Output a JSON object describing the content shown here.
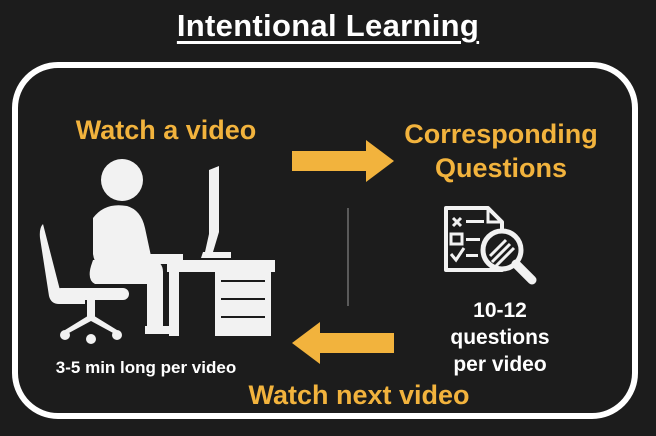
{
  "title": "Intentional Learning",
  "steps": {
    "watch": {
      "label": "Watch a video",
      "icon": "person-at-computer-icon",
      "caption": "3-5 min long per video"
    },
    "questions": {
      "label_line1": "Corresponding",
      "label_line2": "Questions",
      "icon": "checklist-magnifier-icon",
      "caption_line1": "10-12",
      "caption_line2": "questions",
      "caption_line3": "per video"
    },
    "next": {
      "label": "Watch next video"
    }
  },
  "colors": {
    "background": "#1c1c1c",
    "accent": "#f2b33d",
    "arrow": "#f2b33d",
    "text": "#ffffff"
  }
}
